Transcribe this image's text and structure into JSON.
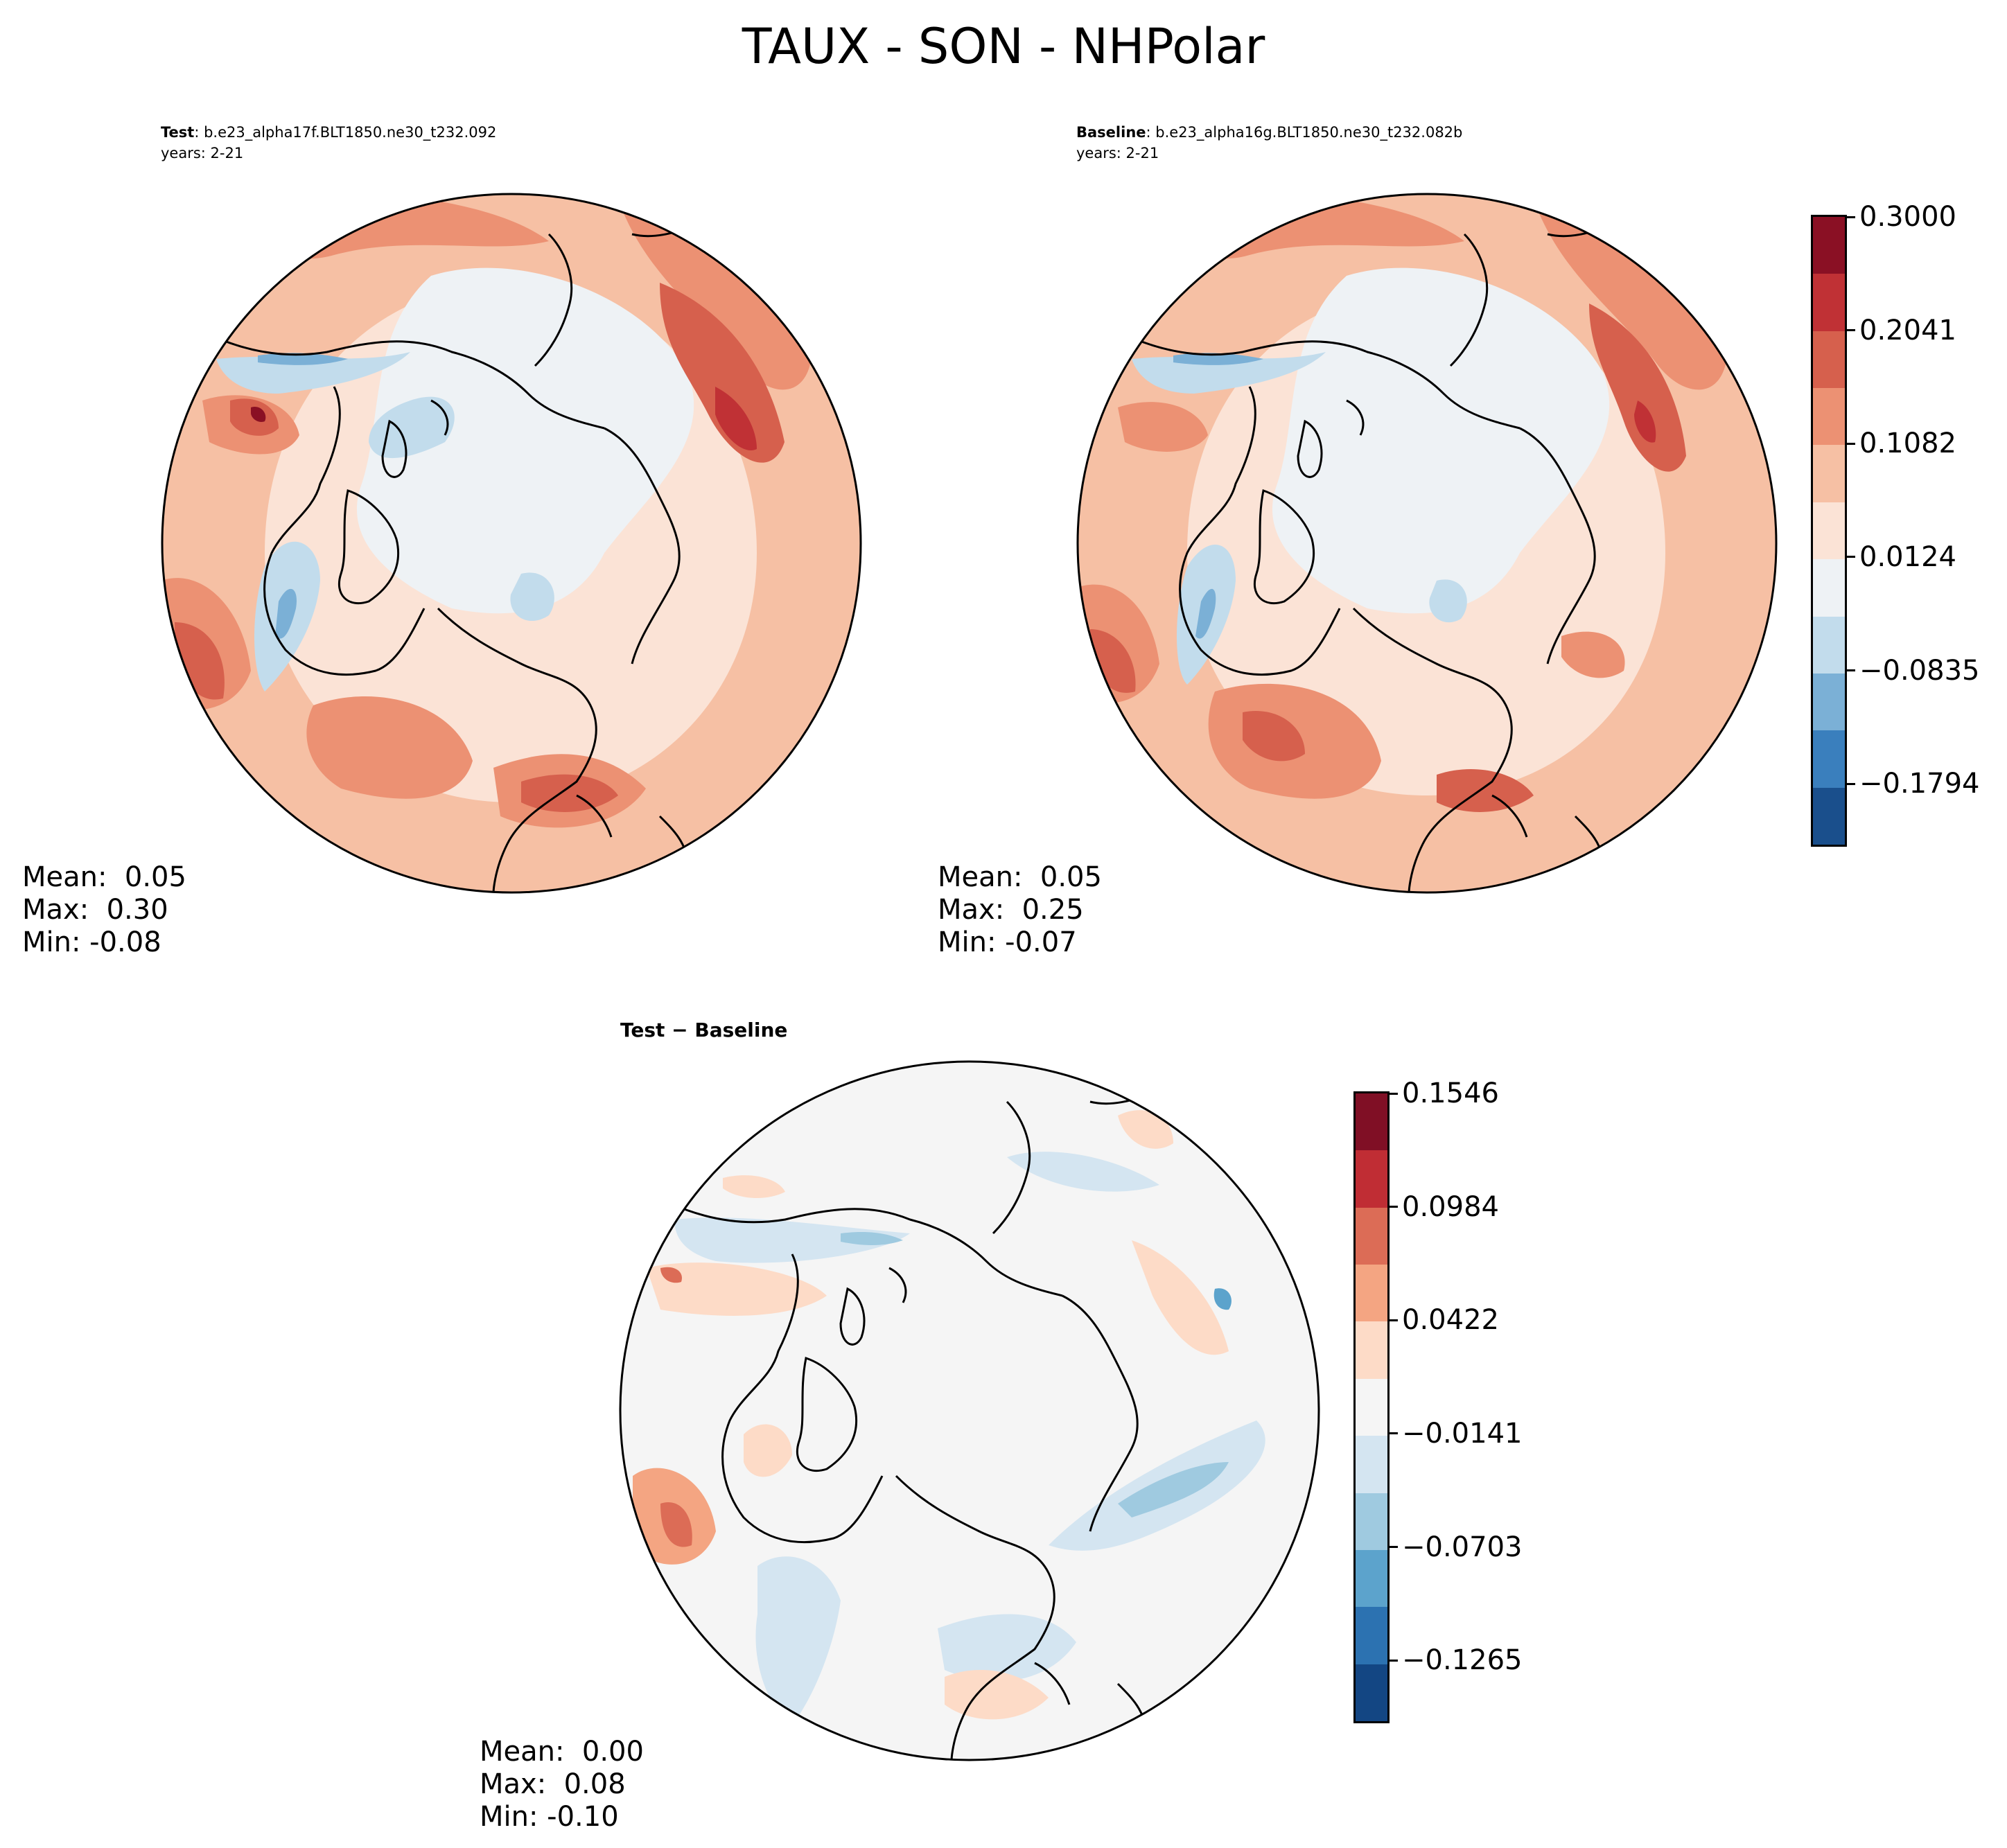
{
  "figure": {
    "title": "TAUX - SON - NHPolar"
  },
  "panels": [
    {
      "id": "test",
      "label_bold": "Test",
      "label_rest": ": b.e23_alpha17f.BLT1850.ne30_t232.092",
      "years": "years: 2-21",
      "stats": {
        "mean": "Mean:  0.05",
        "max": "Max:  0.30",
        "min": "Min: -0.08"
      }
    },
    {
      "id": "baseline",
      "label_bold": "Baseline",
      "label_rest": ": b.e23_alpha16g.BLT1850.ne30_t232.082b",
      "years": "years: 2-21",
      "stats": {
        "mean": "Mean:  0.05",
        "max": "Max:  0.25",
        "min": "Min: -0.07"
      }
    },
    {
      "id": "diff",
      "label_bold": "Test − Baseline",
      "stats": {
        "mean": "Mean:  0.00",
        "max": "Max:  0.08",
        "min": "Min: -0.10"
      }
    }
  ],
  "colorbars": {
    "main": {
      "colors": [
        "#1a4f8c",
        "#3a7fbd",
        "#7bb0d6",
        "#c2dcec",
        "#eef2f5",
        "#fbe3d6",
        "#f6c0a4",
        "#ec9173",
        "#d6604d",
        "#c03135",
        "#8a1024"
      ],
      "ticks": [
        "0.3000",
        "0.2041",
        "0.1082",
        "0.0124",
        "−0.0835",
        "−0.1794"
      ]
    },
    "diff": {
      "colors": [
        "#134683",
        "#2c72b1",
        "#5ca3cc",
        "#9fcae0",
        "#d4e5f1",
        "#f5f5f5",
        "#fddbc7",
        "#f4a582",
        "#dc6c56",
        "#c02d34",
        "#800f25"
      ],
      "ticks": [
        "0.1546",
        "0.0984",
        "0.0422",
        "−0.0141",
        "−0.0703",
        "−0.1265"
      ]
    }
  }
}
